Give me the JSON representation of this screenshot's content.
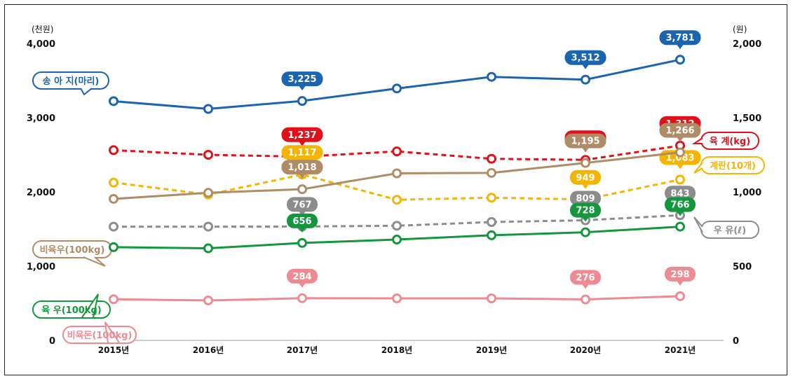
{
  "chart_data": {
    "type": "line",
    "left_unit": "(천원)",
    "right_unit": "(원)",
    "x": [
      "2015년",
      "2016년",
      "2017년",
      "2018년",
      "2019년",
      "2020년",
      "2021년"
    ],
    "left_ticks": [
      "0",
      "1,000",
      "2,000",
      "3,000",
      "4,000"
    ],
    "right_ticks": [
      "0",
      "500",
      "1,000",
      "1,500",
      "2,000"
    ],
    "ylim_left": [
      0,
      4000
    ],
    "ylim_right": [
      0,
      2000
    ],
    "grid": false,
    "series": [
      {
        "name": "송 아 지(마리)",
        "axis": "left",
        "color": "#1a64b0",
        "dashed": false,
        "values": [
          3222,
          3118,
          3225,
          3393,
          3550,
          3512,
          3781
        ],
        "labels": [
          "",
          "",
          "3,225",
          "",
          "",
          "3,512",
          "3,781"
        ]
      },
      {
        "name": "육 계(kg)",
        "axis": "right",
        "color": "#e0111b",
        "dashed": true,
        "values": [
          1281,
          1250,
          1237,
          1273,
          1223,
          1216,
          1312
        ],
        "labels": [
          "",
          "",
          "1,237",
          "",
          "",
          "1,216",
          "1,312"
        ]
      },
      {
        "name": "계란(10개)",
        "axis": "right",
        "color": "#f5b400",
        "dashed": true,
        "values": [
          1063,
          982,
          1117,
          947,
          961,
          949,
          1083
        ],
        "labels": [
          "",
          "",
          "1,117",
          "",
          "",
          "949",
          "1,083"
        ]
      },
      {
        "name": "우 유(ℓ)",
        "axis": "right",
        "color": "#8c8c8c",
        "dashed": true,
        "values": [
          766,
          766,
          767,
          772,
          797,
          809,
          843
        ],
        "labels": [
          "",
          "",
          "767",
          "",
          "",
          "809",
          "843"
        ]
      },
      {
        "name": "비육우(100kg)",
        "axis": "right",
        "color": "#b08c66",
        "dashed": false,
        "values": [
          953,
          994,
          1018,
          1125,
          1128,
          1195,
          1266
        ],
        "labels": [
          "",
          "",
          "1,018",
          "",
          "",
          "1,195",
          "1,266"
        ]
      },
      {
        "name": "육 우(100kg)",
        "axis": "right",
        "color": "#14963c",
        "dashed": false,
        "values": [
          628,
          620,
          656,
          679,
          708,
          728,
          766
        ],
        "labels": [
          "",
          "",
          "656",
          "",
          "",
          "728",
          "766"
        ]
      },
      {
        "name": "비육돈(100kg)",
        "axis": "right",
        "color": "#ee8a92",
        "dashed": false,
        "values": [
          277,
          269,
          284,
          283,
          283,
          276,
          298
        ],
        "labels": [
          "",
          "",
          "284",
          "",
          "",
          "276",
          "298"
        ]
      }
    ]
  }
}
